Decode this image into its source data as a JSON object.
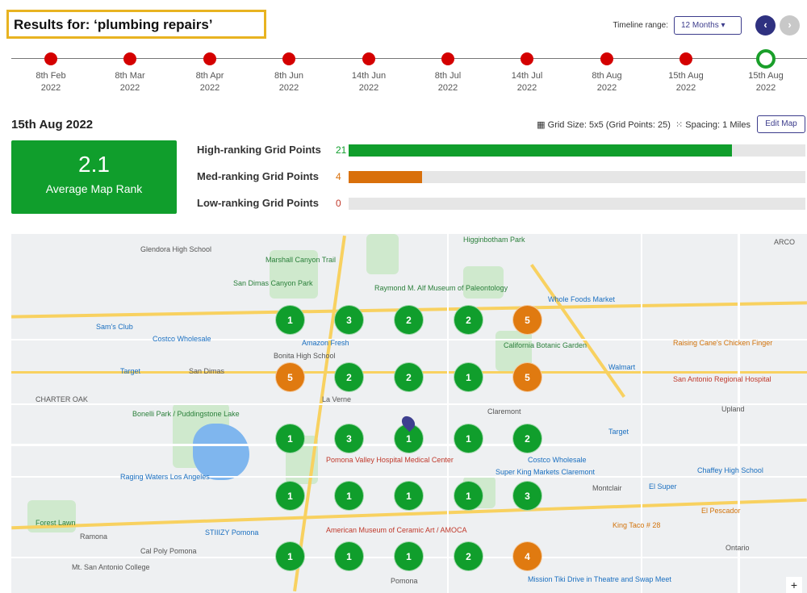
{
  "header": {
    "title": "Results for: ‘plumbing repairs’",
    "timeline_label": "Timeline range:",
    "range_value": "12 Months",
    "range_caret": "▾",
    "prev": "‹",
    "next": "›"
  },
  "timeline": [
    {
      "d": "8th Feb",
      "y": "2022"
    },
    {
      "d": "8th Mar",
      "y": "2022"
    },
    {
      "d": "8th Apr",
      "y": "2022"
    },
    {
      "d": "8th Jun",
      "y": "2022"
    },
    {
      "d": "14th Jun",
      "y": "2022"
    },
    {
      "d": "8th Jul",
      "y": "2022"
    },
    {
      "d": "14th Jul",
      "y": "2022"
    },
    {
      "d": "8th Aug",
      "y": "2022"
    },
    {
      "d": "15th Aug",
      "y": "2022"
    },
    {
      "d": "15th Aug",
      "y": "2022",
      "selected": true
    }
  ],
  "summary": {
    "date": "15th Aug 2022",
    "grid_size": "Grid Size: 5x5 (Grid Points: 25)",
    "spacing": "Spacing: 1 Miles",
    "edit": "Edit Map",
    "avg_rank": "2.1",
    "avg_label": "Average Map Rank"
  },
  "stats": [
    {
      "label": "High-ranking Grid Points",
      "count": "21",
      "fraction": 0.84,
      "color": "#109e2c"
    },
    {
      "label": "Med-ranking Grid Points",
      "count": "4",
      "fraction": 0.16,
      "color": "#d9700b"
    },
    {
      "label": "Low-ranking Grid Points",
      "count": "0",
      "fraction": 0,
      "color": "#c0392b"
    }
  ],
  "colors": {
    "high": "#109e2c",
    "med": "#e07a10",
    "accent": "#2f3180"
  },
  "grid": [
    [
      "1",
      "3",
      "2",
      "2",
      "5"
    ],
    [
      "5",
      "2",
      "2",
      "1",
      "5"
    ],
    [
      "1",
      "3",
      "1",
      "1",
      "2"
    ],
    [
      "1",
      "1",
      "1",
      "1",
      "3"
    ],
    [
      "1",
      "1",
      "1",
      "2",
      "4"
    ]
  ],
  "map_labels": [
    "Glendora High School",
    "Marshall Canyon Trail",
    "Higginbotham Park",
    "San Dimas Canyon Park",
    "Raymond M. Alf Museum of Paleontology",
    "Whole Foods Market",
    "Sam's Club",
    "Costco Wholesale",
    "Amazon Fresh",
    "Bonita High School",
    "California Botanic Garden",
    "Target",
    "San Dimas",
    "La Verne",
    "Claremont",
    "Walmart",
    "Raising Cane's Chicken Finger",
    "San Antonio Regional Hospital",
    "CHARTER OAK",
    "Bonelli Park / Puddingstone Lake",
    "Upland",
    "Pomona Valley Hospital Medical Center",
    "Super King Markets Claremont",
    "Costco Wholesale",
    "Chaffey High School",
    "Raging Waters Los Angeles",
    "Montclair",
    "El Super",
    "El Pescador",
    "Forest Lawn",
    "American Museum of Ceramic Art / AMOCA",
    "King Taco # 28",
    "Ramona",
    "Cal Poly Pomona",
    "STIIIZY Pomona",
    "Ontario",
    "Mt. San Antonio College",
    "Pomona",
    "Mission Tiki Drive in Theatre and Swap Meet",
    "ARCO",
    "Target"
  ],
  "map_zoom_in": "+"
}
